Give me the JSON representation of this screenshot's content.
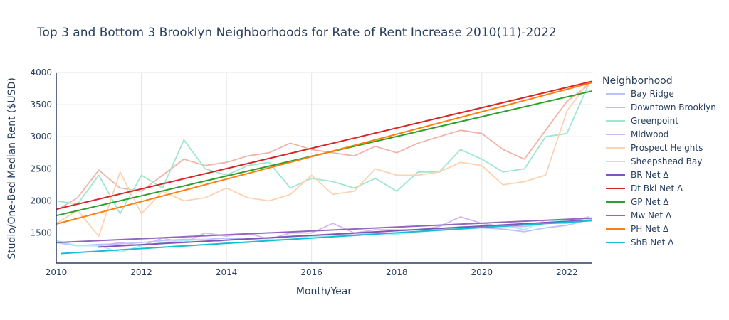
{
  "chart_data": {
    "type": "line",
    "title": "Top 3 and Bottom 3 Brooklyn Neighborhoods for Rate of Rent Increase 2010(11)-2022",
    "xlabel": "Month/Year",
    "ylabel": "Studio/One-Bed Median Rent ($USD)",
    "xlim": [
      2010.0,
      2022.58
    ],
    "ylim": [
      1030,
      4000
    ],
    "x_ticks": [
      "2010",
      "2012",
      "2014",
      "2016",
      "2018",
      "2020",
      "2022"
    ],
    "y_ticks": [
      "1500",
      "2000",
      "2500",
      "3000",
      "3500",
      "4000"
    ],
    "grid": true,
    "legend_title": "Neighborhood",
    "legend_position": "right",
    "series": [
      {
        "name": "Bay Ridge",
        "kind": "data",
        "color": "#b9c2fb",
        "x": [
          2010.0,
          2010.5,
          2011.0,
          2011.5,
          2012.0,
          2012.5,
          2013.0,
          2013.5,
          2014.0,
          2014.5,
          2015.0,
          2015.5,
          2016.0,
          2016.5,
          2017.0,
          2017.5,
          2018.0,
          2018.5,
          2019.0,
          2019.5,
          2020.0,
          2020.5,
          2021.0,
          2021.5,
          2022.0,
          2022.5
        ],
        "y": [
          1350,
          1300,
          1320,
          1330,
          1350,
          1380,
          1400,
          1400,
          1420,
          1400,
          1420,
          1450,
          1460,
          1480,
          1470,
          1500,
          1500,
          1520,
          1540,
          1560,
          1580,
          1560,
          1520,
          1580,
          1620,
          1700
        ]
      },
      {
        "name": "Downtown Brooklyn",
        "kind": "data",
        "color": "#f1b3a6",
        "x": [
          2010.0,
          2010.5,
          2011.0,
          2011.5,
          2012.0,
          2012.5,
          2013.0,
          2013.5,
          2014.0,
          2014.5,
          2015.0,
          2015.5,
          2016.0,
          2016.5,
          2017.0,
          2017.5,
          2018.0,
          2018.5,
          2019.0,
          2019.5,
          2020.0,
          2020.5,
          2021.0,
          2021.5,
          2022.0,
          2022.5
        ],
        "y": [
          1850,
          2050,
          2480,
          2200,
          2150,
          2400,
          2650,
          2550,
          2600,
          2700,
          2750,
          2900,
          2800,
          2750,
          2700,
          2850,
          2750,
          2900,
          3000,
          3100,
          3050,
          2800,
          2650,
          3100,
          3550,
          3800
        ]
      },
      {
        "name": "Greenpoint",
        "kind": "data",
        "color": "#9de6cf",
        "x": [
          2010.0,
          2010.5,
          2011.0,
          2011.5,
          2012.0,
          2012.5,
          2013.0,
          2013.5,
          2014.0,
          2014.5,
          2015.0,
          2015.5,
          2016.0,
          2016.5,
          2017.0,
          2017.5,
          2018.0,
          2018.5,
          2019.0,
          2019.5,
          2020.0,
          2020.5,
          2021.0,
          2021.5,
          2022.0,
          2022.5
        ],
        "y": [
          2000,
          1950,
          2400,
          1800,
          2400,
          2200,
          2950,
          2500,
          2400,
          2550,
          2600,
          2200,
          2350,
          2300,
          2200,
          2350,
          2150,
          2450,
          2450,
          2800,
          2650,
          2450,
          2500,
          3000,
          3050,
          3800
        ]
      },
      {
        "name": "Midwood",
        "kind": "data",
        "color": "#d5b6f4",
        "x": [
          2010.0,
          2010.5,
          2011.0,
          2011.5,
          2012.0,
          2012.5,
          2013.0,
          2013.5,
          2014.0,
          2014.5,
          2015.0,
          2015.5,
          2016.0,
          2016.5,
          2017.0,
          2017.5,
          2018.0,
          2018.5,
          2019.0,
          2019.5,
          2020.0,
          2020.5,
          2021.0,
          2021.5,
          2022.0,
          2022.5
        ],
        "y": [
          1380,
          1300,
          1300,
          1350,
          1300,
          1420,
          1350,
          1500,
          1450,
          1500,
          1400,
          1500,
          1500,
          1650,
          1500,
          1550,
          1550,
          1550,
          1600,
          1750,
          1650,
          1600,
          1600,
          1650,
          1650,
          1750
        ]
      },
      {
        "name": "Prospect Heights",
        "kind": "data",
        "color": "#fbd3b1",
        "x": [
          2010.0,
          2010.5,
          2011.0,
          2011.5,
          2012.0,
          2012.5,
          2013.0,
          2013.5,
          2014.0,
          2014.5,
          2015.0,
          2015.5,
          2016.0,
          2016.5,
          2017.0,
          2017.5,
          2018.0,
          2018.5,
          2019.0,
          2019.5,
          2020.0,
          2020.5,
          2021.0,
          2021.5,
          2022.0,
          2022.5
        ],
        "y": [
          1650,
          1850,
          1450,
          2450,
          1800,
          2150,
          2000,
          2050,
          2200,
          2050,
          2000,
          2100,
          2400,
          2100,
          2150,
          2500,
          2400,
          2400,
          2450,
          2600,
          2550,
          2250,
          2300,
          2400,
          3400,
          3850
        ]
      },
      {
        "name": "Sheepshead Bay",
        "kind": "data",
        "color": "#a8edf0",
        "x": [
          2010.0,
          2010.5,
          2011.0,
          2011.5,
          2012.0,
          2012.5,
          2013.0,
          2013.5,
          2014.0,
          2014.5,
          2015.0,
          2015.5,
          2016.0,
          2016.5,
          2017.0,
          2017.5,
          2018.0,
          2018.5,
          2019.0,
          2019.5,
          2020.0,
          2020.5,
          2021.0,
          2021.5,
          2022.0,
          2022.5
        ],
        "y": [
          1380,
          1300,
          1300,
          1200,
          1300,
          1350,
          1380,
          1400,
          1350,
          1350,
          1400,
          1400,
          1450,
          1450,
          1500,
          1500,
          1480,
          1520,
          1550,
          1600,
          1580,
          1620,
          1550,
          1700,
          1680,
          1700
        ]
      },
      {
        "name": "BR Net Δ",
        "kind": "trend",
        "color": "#7f55b6",
        "x": [
          2011.0,
          2022.58
        ],
        "y": [
          1280,
          1700
        ]
      },
      {
        "name": "Dt Bkl Net Δ",
        "kind": "trend",
        "color": "#d62728",
        "x": [
          2010.0,
          2022.58
        ],
        "y": [
          1870,
          3860
        ]
      },
      {
        "name": "GP Net Δ",
        "kind": "trend",
        "color": "#2ca02c",
        "x": [
          2010.0,
          2022.58
        ],
        "y": [
          1770,
          3710
        ]
      },
      {
        "name": "Mw Net Δ",
        "kind": "trend",
        "color": "#9467bd",
        "x": [
          2010.0,
          2022.58
        ],
        "y": [
          1350,
          1730
        ]
      },
      {
        "name": "PH Net Δ",
        "kind": "trend",
        "color": "#ff7f0e",
        "x": [
          2010.0,
          2022.58
        ],
        "y": [
          1640,
          3840
        ]
      },
      {
        "name": "ShB Net Δ",
        "kind": "trend",
        "color": "#17becf",
        "x": [
          2010.12,
          2022.58
        ],
        "y": [
          1180,
          1690
        ]
      }
    ]
  }
}
